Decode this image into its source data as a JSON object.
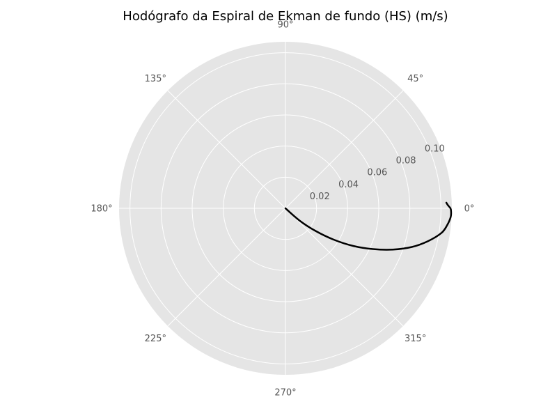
{
  "chart_data": {
    "type": "line",
    "projection": "polar",
    "title": "Hodógrafo da Espiral de Ekman de fundo (HS) (m/s)",
    "theta_tick_labels": [
      "0°",
      "45°",
      "90°",
      "135°",
      "180°",
      "225°",
      "270°",
      "315°"
    ],
    "theta_ticks_deg": [
      0,
      45,
      90,
      135,
      180,
      225,
      270,
      315
    ],
    "r_tick_labels": [
      "0.02",
      "0.04",
      "0.06",
      "0.08",
      "0.10"
    ],
    "r_ticks": [
      0.02,
      0.04,
      0.06,
      0.08,
      0.1
    ],
    "r_max": 0.107,
    "grid": true,
    "colors": {
      "axes_background": "#e5e5e5",
      "grid": "#ffffff",
      "line": "#000000",
      "tick_text": "#555555"
    },
    "series": [
      {
        "theta_deg": [
          -45,
          -41,
          -37,
          -33,
          -29,
          -25,
          -21,
          -17,
          -13,
          -9,
          -6,
          -3,
          -1,
          0,
          1,
          2
        ],
        "r": [
          0,
          0.012,
          0.024,
          0.037,
          0.05,
          0.062,
          0.074,
          0.085,
          0.094,
          0.1015,
          0.1045,
          0.1064,
          0.1065,
          0.1061,
          0.1046,
          0.1035
        ]
      }
    ]
  }
}
